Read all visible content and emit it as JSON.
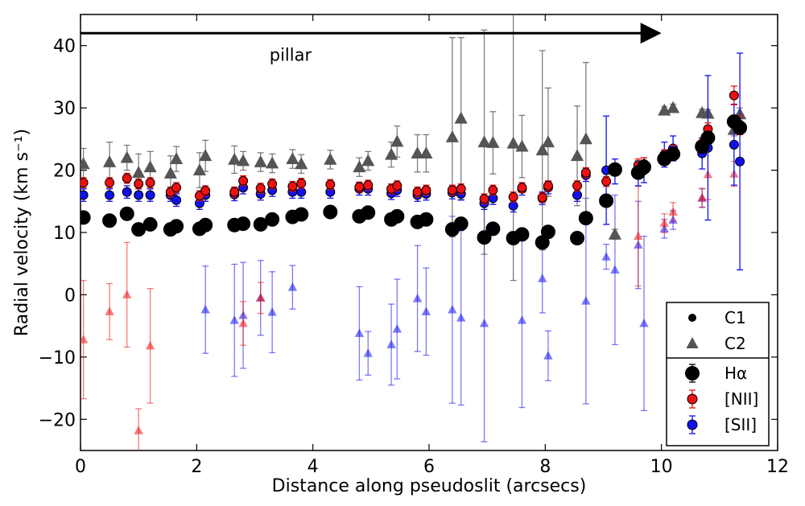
{
  "chart_data": {
    "type": "scatter",
    "xlabel": "Distance along pseudoslit (arcsecs)",
    "ylabel": "Radial velocity (km s⁻¹)",
    "xlim": [
      0,
      12
    ],
    "ylim": [
      -25,
      45
    ],
    "xticks": [
      0,
      2,
      4,
      6,
      8,
      10,
      12
    ],
    "yticks": [
      -20,
      -10,
      0,
      10,
      20,
      30,
      40
    ],
    "xtick_labels": [
      "0",
      "2",
      "4",
      "6",
      "8",
      "10",
      "12"
    ],
    "ytick_labels": [
      "−20",
      "−10",
      "0",
      "10",
      "20",
      "30",
      "40"
    ],
    "annotation": {
      "text": "pillar",
      "arrow_from_x": 0,
      "arrow_to_x": 10,
      "arrow_y": 42,
      "text_x": 3.2,
      "text_y": 38.5
    },
    "colors": {
      "halpha": "#000000",
      "nii": "#ee1111",
      "sii": "#1111ee",
      "c2_halpha": "#555555"
    },
    "legend": {
      "placement": "lower-right",
      "components": [
        {
          "key": "c1",
          "label": "C1"
        },
        {
          "key": "c2",
          "label": "C2"
        }
      ],
      "lines": [
        {
          "key": "halpha",
          "label": "Hα"
        },
        {
          "key": "nii",
          "label": "[NII]"
        },
        {
          "key": "sii",
          "label": "[SII]"
        }
      ]
    },
    "series": [
      {
        "name": "Hα C1",
        "line": "halpha",
        "component": "C1",
        "points": [
          [
            0.05,
            12.4,
            0.8
          ],
          [
            0.5,
            11.9,
            0.8
          ],
          [
            0.8,
            13.0,
            0.8
          ],
          [
            1.0,
            10.5,
            0.8
          ],
          [
            1.2,
            11.3,
            0.8
          ],
          [
            1.55,
            10.5,
            0.8
          ],
          [
            1.65,
            11.0,
            0.8
          ],
          [
            2.05,
            10.6,
            0.8
          ],
          [
            2.15,
            11.2,
            0.8
          ],
          [
            2.65,
            11.2,
            0.8
          ],
          [
            2.8,
            11.4,
            0.8
          ],
          [
            3.1,
            11.3,
            0.8
          ],
          [
            3.3,
            12.1,
            0.8
          ],
          [
            3.65,
            12.5,
            0.8
          ],
          [
            3.8,
            12.9,
            0.8
          ],
          [
            4.3,
            13.3,
            0.8
          ],
          [
            4.8,
            12.6,
            0.8
          ],
          [
            4.95,
            13.2,
            0.8
          ],
          [
            5.35,
            12.1,
            0.8
          ],
          [
            5.45,
            12.6,
            0.8
          ],
          [
            5.8,
            11.7,
            0.8
          ],
          [
            5.95,
            12.1,
            0.8
          ],
          [
            6.4,
            10.5,
            0.8
          ],
          [
            6.55,
            11.4,
            0.8
          ],
          [
            6.95,
            9.2,
            0.8
          ],
          [
            7.1,
            10.6,
            0.8
          ],
          [
            7.45,
            9.1,
            0.8
          ],
          [
            7.6,
            9.7,
            0.8
          ],
          [
            7.95,
            8.4,
            0.8
          ],
          [
            8.05,
            10.1,
            0.8
          ],
          [
            8.55,
            9.1,
            0.8
          ],
          [
            8.7,
            12.3,
            0.8
          ],
          [
            9.05,
            15.1,
            0.8
          ],
          [
            9.2,
            20.1,
            0.8
          ],
          [
            9.6,
            19.6,
            0.8
          ],
          [
            9.7,
            20.5,
            0.8
          ],
          [
            10.05,
            21.8,
            0.8
          ],
          [
            10.2,
            22.6,
            0.8
          ],
          [
            10.7,
            23.8,
            0.8
          ],
          [
            10.8,
            25.2,
            0.8
          ],
          [
            11.25,
            27.8,
            0.8
          ],
          [
            11.35,
            26.8,
            0.8
          ]
        ]
      },
      {
        "name": "Hα C2",
        "line": "halpha",
        "component": "C2",
        "points": [
          [
            0.05,
            21.0,
            2.5
          ],
          [
            0.5,
            21.3,
            3.2
          ],
          [
            0.8,
            22.0,
            2.0
          ],
          [
            1.0,
            19.6,
            3.0
          ],
          [
            1.2,
            20.5,
            2.5
          ],
          [
            1.55,
            19.5,
            2.8
          ],
          [
            1.65,
            21.8,
            2.0
          ],
          [
            2.05,
            20.0,
            2.8
          ],
          [
            2.15,
            22.3,
            2.5
          ],
          [
            2.65,
            21.7,
            2.2
          ],
          [
            2.8,
            21.5,
            1.5
          ],
          [
            3.1,
            21.3,
            1.5
          ],
          [
            3.3,
            21.1,
            1.5
          ],
          [
            3.65,
            21.8,
            1.5
          ],
          [
            3.8,
            21.0,
            1.5
          ],
          [
            4.3,
            21.7,
            1.5
          ],
          [
            4.8,
            20.5,
            1.5
          ],
          [
            4.95,
            21.5,
            1.5
          ],
          [
            5.35,
            22.5,
            2.0
          ],
          [
            5.45,
            24.6,
            2.5
          ],
          [
            5.8,
            22.7,
            3.0
          ],
          [
            5.95,
            22.7,
            3.0
          ],
          [
            6.4,
            25.3,
            16.0
          ],
          [
            6.55,
            28.3,
            13.0
          ],
          [
            6.95,
            24.5,
            18.0
          ],
          [
            7.1,
            24.4,
            5.0
          ],
          [
            7.45,
            24.3,
            22.0
          ],
          [
            7.6,
            23.8,
            5.0
          ],
          [
            7.95,
            23.2,
            16.0
          ],
          [
            8.05,
            24.5,
            8.7
          ],
          [
            8.55,
            22.3,
            8.0
          ],
          [
            8.7,
            25.0,
            12.3
          ],
          [
            9.2,
            9.7,
            0.8
          ],
          [
            10.05,
            29.6,
            0.6
          ],
          [
            10.2,
            30.0,
            0.6
          ],
          [
            10.7,
            29.2,
            0.6
          ],
          [
            10.8,
            29.1,
            0.6
          ],
          [
            11.25,
            26.5,
            1.0
          ],
          [
            11.35,
            29.0,
            1.0
          ]
        ]
      },
      {
        "name": "[NII] C1",
        "line": "nii",
        "component": "C1",
        "points": [
          [
            0.05,
            18.0,
            0.8
          ],
          [
            0.5,
            18.0,
            0.8
          ],
          [
            0.8,
            18.7,
            0.8
          ],
          [
            1.0,
            17.8,
            0.8
          ],
          [
            1.2,
            18.0,
            0.8
          ],
          [
            1.55,
            16.5,
            0.8
          ],
          [
            1.65,
            17.2,
            0.8
          ],
          [
            2.05,
            15.9,
            0.8
          ],
          [
            2.15,
            16.7,
            0.8
          ],
          [
            2.65,
            16.5,
            0.8
          ],
          [
            2.8,
            18.3,
            0.8
          ],
          [
            3.1,
            17.1,
            0.8
          ],
          [
            3.3,
            17.8,
            0.8
          ],
          [
            3.65,
            17.4,
            0.8
          ],
          [
            3.8,
            17.9,
            0.8
          ],
          [
            4.3,
            17.7,
            0.8
          ],
          [
            4.8,
            17.3,
            0.8
          ],
          [
            4.95,
            17.6,
            0.8
          ],
          [
            5.35,
            17.0,
            0.8
          ],
          [
            5.45,
            17.5,
            0.8
          ],
          [
            5.8,
            16.5,
            0.8
          ],
          [
            5.95,
            16.8,
            0.8
          ],
          [
            6.4,
            16.8,
            0.8
          ],
          [
            6.55,
            17.0,
            0.8
          ],
          [
            6.95,
            15.4,
            0.8
          ],
          [
            7.1,
            16.8,
            0.8
          ],
          [
            7.45,
            15.7,
            0.8
          ],
          [
            7.6,
            17.2,
            0.8
          ],
          [
            7.95,
            15.6,
            0.8
          ],
          [
            8.05,
            17.5,
            0.8
          ],
          [
            8.55,
            17.5,
            0.8
          ],
          [
            8.7,
            19.6,
            0.8
          ],
          [
            9.05,
            18.2,
            0.8
          ],
          [
            9.2,
            20.0,
            0.8
          ],
          [
            9.6,
            20.8,
            1.0
          ],
          [
            9.7,
            21.0,
            1.0
          ],
          [
            10.05,
            22.3,
            1.0
          ],
          [
            10.2,
            23.0,
            1.0
          ],
          [
            10.7,
            24.0,
            1.0
          ],
          [
            10.8,
            26.6,
            1.0
          ],
          [
            11.25,
            32.0,
            1.5
          ],
          [
            11.35,
            27.2,
            1.5
          ]
        ]
      },
      {
        "name": "[NII] C2",
        "line": "nii",
        "component": "C2",
        "points": [
          [
            0.05,
            -7.2,
            9.5
          ],
          [
            0.5,
            -2.7,
            4.5
          ],
          [
            0.8,
            0.0,
            8.4
          ],
          [
            1.0,
            -21.8,
            3.5
          ],
          [
            1.2,
            -8.2,
            9.2
          ],
          [
            2.8,
            -4.6,
            3.5
          ],
          [
            3.1,
            -0.5,
            2.5
          ],
          [
            9.6,
            9.4,
            8.0
          ],
          [
            10.05,
            11.5,
            1.5
          ],
          [
            10.2,
            13.3,
            1.5
          ],
          [
            10.7,
            15.6,
            1.5
          ],
          [
            10.8,
            19.3,
            4.0
          ],
          [
            11.25,
            19.4,
            2.0
          ]
        ]
      },
      {
        "name": "[SII] C1",
        "line": "sii",
        "component": "C1",
        "points": [
          [
            0.05,
            16.0,
            1.0
          ],
          [
            0.5,
            16.0,
            1.0
          ],
          [
            0.8,
            16.5,
            1.0
          ],
          [
            1.0,
            16.0,
            1.0
          ],
          [
            1.2,
            16.0,
            1.0
          ],
          [
            1.55,
            16.0,
            1.0
          ],
          [
            1.65,
            15.2,
            1.0
          ],
          [
            2.05,
            14.7,
            1.0
          ],
          [
            2.15,
            16.0,
            1.0
          ],
          [
            2.65,
            16.1,
            1.0
          ],
          [
            2.8,
            17.2,
            1.0
          ],
          [
            3.1,
            16.2,
            1.0
          ],
          [
            3.3,
            16.8,
            1.0
          ],
          [
            3.65,
            16.5,
            1.0
          ],
          [
            3.8,
            16.5,
            1.0
          ],
          [
            4.3,
            16.5,
            1.0
          ],
          [
            4.8,
            17.0,
            1.0
          ],
          [
            4.95,
            17.0,
            1.0
          ],
          [
            5.35,
            16.3,
            1.0
          ],
          [
            5.45,
            16.8,
            1.0
          ],
          [
            5.8,
            16.0,
            1.0
          ],
          [
            5.95,
            16.2,
            1.0
          ],
          [
            6.4,
            16.4,
            1.0
          ],
          [
            6.55,
            16.2,
            1.0
          ],
          [
            6.95,
            14.7,
            1.0
          ],
          [
            7.1,
            15.5,
            1.0
          ],
          [
            7.45,
            14.3,
            1.0
          ],
          [
            7.6,
            17.0,
            1.0
          ],
          [
            7.95,
            15.5,
            1.0
          ],
          [
            8.05,
            17.2,
            1.0
          ],
          [
            8.55,
            16.0,
            1.0
          ],
          [
            8.7,
            19.2,
            1.0
          ],
          [
            9.05,
            20.0,
            8.7
          ],
          [
            9.2,
            19.8,
            2.0
          ],
          [
            9.6,
            19.5,
            2.0
          ],
          [
            9.7,
            20.0,
            2.0
          ],
          [
            10.05,
            22.5,
            2.0
          ],
          [
            10.2,
            23.5,
            2.0
          ],
          [
            10.7,
            22.7,
            2.5
          ],
          [
            10.8,
            23.6,
            11.6
          ],
          [
            11.25,
            24.1,
            6.5
          ],
          [
            11.35,
            21.4,
            17.4
          ]
        ]
      },
      {
        "name": "[SII] C2",
        "line": "sii",
        "component": "C2",
        "points": [
          [
            2.15,
            -2.4,
            7.0
          ],
          [
            2.65,
            -4.1,
            9.0
          ],
          [
            2.8,
            -3.3,
            8.5
          ],
          [
            3.1,
            -0.5,
            6.0
          ],
          [
            3.3,
            -2.8,
            6.5
          ],
          [
            3.65,
            1.2,
            3.5
          ],
          [
            4.8,
            -6.2,
            7.5
          ],
          [
            4.95,
            -9.4,
            3.5
          ],
          [
            5.35,
            -8.0,
            6.5
          ],
          [
            5.45,
            -5.5,
            8.0
          ],
          [
            5.8,
            -0.6,
            8.5
          ],
          [
            5.95,
            -2.7,
            7.0
          ],
          [
            6.4,
            -2.4,
            15.0
          ],
          [
            6.55,
            -3.7,
            14.0
          ],
          [
            6.95,
            -4.6,
            19.0
          ],
          [
            7.6,
            -4.1,
            14.0
          ],
          [
            7.95,
            2.6,
            5.5
          ],
          [
            8.05,
            -9.8,
            4.0
          ],
          [
            8.7,
            -1.0,
            16.5
          ],
          [
            9.05,
            6.1,
            2.0
          ],
          [
            9.2,
            4.0,
            12.0
          ],
          [
            9.6,
            8.0,
            7.0
          ],
          [
            9.7,
            -4.6,
            14.0
          ],
          [
            10.05,
            10.6,
            1.5
          ],
          [
            10.2,
            12.0,
            1.5
          ],
          [
            10.7,
            15.5,
            1.5
          ]
        ]
      }
    ]
  }
}
